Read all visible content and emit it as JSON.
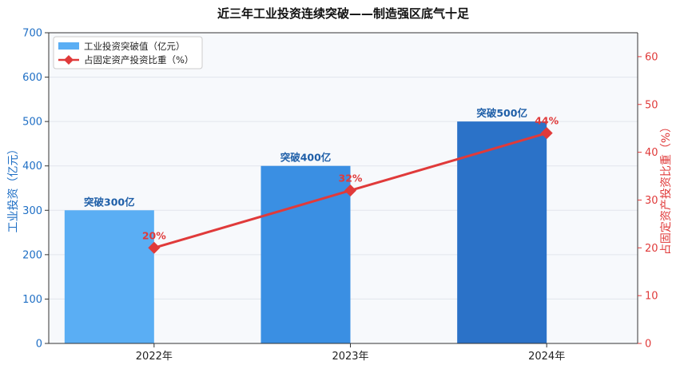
{
  "chart_data": {
    "type": "bar",
    "title": "近三年工业投资连续突破——制造强区底气十足",
    "categories": [
      "2022年",
      "2023年",
      "2024年"
    ],
    "series": [
      {
        "name": "工业投资突破值（亿元）",
        "type": "bar",
        "axis": "left",
        "values": [
          300,
          400,
          500
        ],
        "labels": [
          "突破300亿",
          "突破400亿",
          "突破500亿"
        ],
        "colors": [
          "#5aaef4",
          "#3a8fe3",
          "#2b72c8"
        ]
      },
      {
        "name": "占固定资产投资比重（%）",
        "type": "line",
        "axis": "right",
        "values": [
          20,
          32,
          44
        ],
        "labels": [
          "20%",
          "32%",
          "44%"
        ],
        "color": "#e03a3a"
      }
    ],
    "ylabel_left": "工业投资（亿元）",
    "ylabel_right": "占固定资产投资比重（%）",
    "ylim_left": [
      0,
      700
    ],
    "yticks_left": [
      "0",
      "100",
      "200",
      "300",
      "400",
      "500",
      "600",
      "700"
    ],
    "ylim_right": [
      0,
      65
    ],
    "yticks_right": [
      "0",
      "10",
      "20",
      "30",
      "40",
      "50",
      "60"
    ],
    "grid": true,
    "legend_position": "top-left"
  }
}
